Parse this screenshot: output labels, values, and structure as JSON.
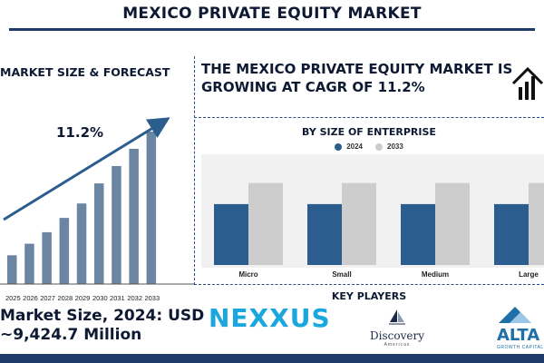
{
  "banner": {
    "title": "MEXICO PRIVATE EQUITY MARKET"
  },
  "market_size": {
    "heading": "MARKET SIZE & FORECAST",
    "cagr_label": "11.2%",
    "value_line1": "Market Size, 2024: USD",
    "value_line2": "~9,424.7 Million"
  },
  "headline": {
    "cagr_statement": "THE MEXICO PRIVATE EQUITY MARKET IS GROWING AT CAGR OF 11.2%"
  },
  "enterprise": {
    "title": "BY SIZE OF ENTERPRISE",
    "legend": [
      {
        "label": "2024",
        "color": "#2b5d8f"
      },
      {
        "label": "2033",
        "color": "#cdcdcd"
      }
    ]
  },
  "key_players": {
    "title": "KEY PLAYERS",
    "nexxus": "NEXXUS",
    "discovery_name": "Discovery",
    "discovery_sub": "Americas",
    "alta_name": "ALTA",
    "alta_sub": "GROWTH CAPITAL"
  },
  "icons": {
    "growth_icon": "house-growth-icon",
    "discovery_mark": "sail-icon",
    "alta_mark": "mountain-icon"
  },
  "colors": {
    "navy": "#1f3c68",
    "bar_steel": "#6b86a3",
    "bar_2024": "#2b5d8f",
    "bar_2033": "#cdcdcd",
    "nexxus_blue": "#1aa7dd"
  },
  "chart_data": [
    {
      "type": "bar",
      "title": "MARKET SIZE & FORECAST",
      "categories": [
        "2025",
        "2026",
        "2027",
        "2028",
        "2029",
        "2030",
        "2031",
        "2032",
        "2033"
      ],
      "values": [
        1.0,
        1.4,
        1.8,
        2.3,
        2.8,
        3.5,
        4.1,
        4.7,
        5.3
      ],
      "annotation": "11.2%",
      "grid": false,
      "trend_arrow": true
    },
    {
      "type": "bar",
      "title": "BY SIZE OF ENTERPRISE",
      "categories": [
        "Micro",
        "Small",
        "Medium",
        "Large"
      ],
      "series": [
        {
          "name": "2024",
          "values": [
            55,
            55,
            55,
            55
          ]
        },
        {
          "name": "2033",
          "values": [
            74,
            74,
            74,
            74
          ]
        }
      ],
      "ylim": [
        0,
        100
      ],
      "legend": "top-center",
      "grid": false
    }
  ]
}
